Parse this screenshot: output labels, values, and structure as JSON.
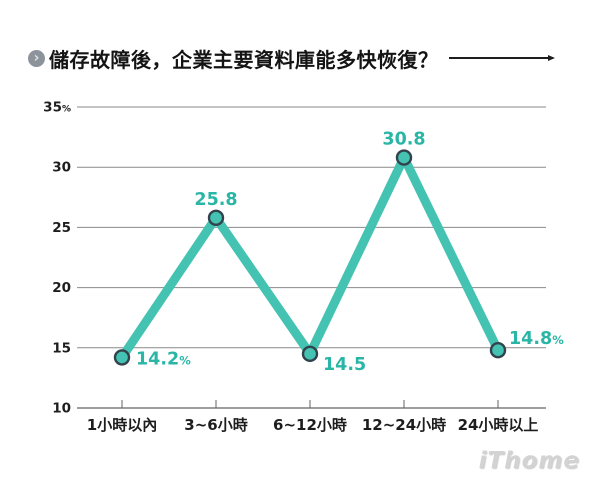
{
  "title": {
    "glyph": "›",
    "text": "儲存故障後，企業主要資料庫能多快恢復？"
  },
  "watermark": "iThome",
  "chart_data": {
    "type": "line",
    "title": "儲存故障後，企業主要資料庫能多快恢復？",
    "categories": [
      "1小時以內",
      "3~6小時",
      "6~12小時",
      "12~24小時",
      "24小時以上"
    ],
    "values": [
      14.2,
      25.8,
      14.5,
      30.8,
      14.8
    ],
    "value_labels": [
      "14.2%",
      "25.8",
      "14.5",
      "30.8",
      "14.8%"
    ],
    "label_positions": [
      "right",
      "above",
      "right-below",
      "above",
      "right-above"
    ],
    "unit": "%",
    "xlabel": "",
    "ylabel": "",
    "ylim": [
      10,
      35
    ],
    "yticks": [
      10,
      15,
      20,
      25,
      30,
      35
    ],
    "ytick_labels": [
      "10",
      "15",
      "20",
      "25",
      "30",
      "35%"
    ],
    "grid": true,
    "legend": "none",
    "colors": {
      "line": "#44c2b2",
      "marker_fill": "#44c2b2",
      "marker_stroke": "#32434d",
      "value_label": "#2ab6a6",
      "grid": "#8a8a8a",
      "axis": "#636363",
      "tick_label": "#1d1d1d"
    }
  }
}
